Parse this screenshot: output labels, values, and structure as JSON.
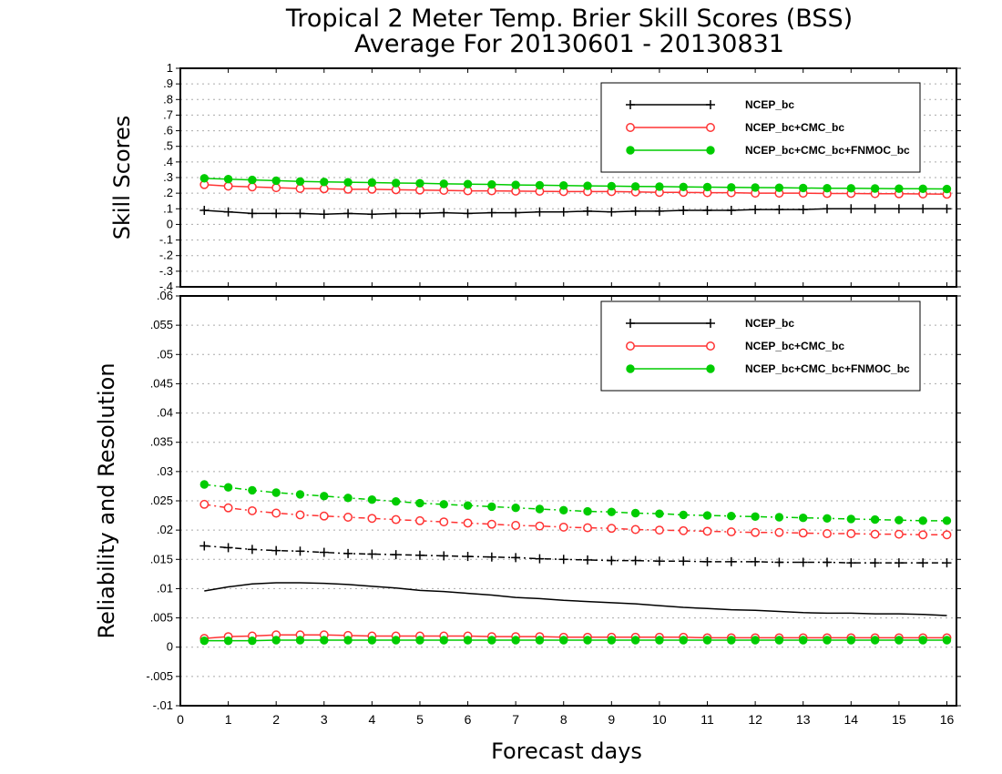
{
  "chart_title_line1": "Tropical 2 Meter Temp. Brier Skill Scores (BSS)",
  "chart_title_line2": "Average For 20130601 - 20130831",
  "chart_data": [
    {
      "type": "line",
      "panel": "top",
      "ylabel": "Skill Scores",
      "xlabel": "",
      "xlim": [
        0,
        16.2
      ],
      "ylim": [
        -0.4,
        1
      ],
      "yticks": [
        1,
        0.9,
        0.8,
        0.7,
        0.6,
        0.5,
        0.4,
        0.3,
        0.2,
        0.1,
        0,
        -0.1,
        -0.2,
        -0.3,
        -0.4
      ],
      "grid": true,
      "legend_position": "top-right",
      "x": [
        0.5,
        1,
        1.5,
        2,
        2.5,
        3,
        3.5,
        4,
        4.5,
        5,
        5.5,
        6,
        6.5,
        7,
        7.5,
        8,
        8.5,
        9,
        9.5,
        10,
        10.5,
        11,
        11.5,
        12,
        12.5,
        13,
        13.5,
        14,
        14.5,
        15,
        15.5,
        16
      ],
      "series": [
        {
          "name": "NCEP_bc",
          "color": "#000000",
          "marker": "plus",
          "line": "solid",
          "values": [
            0.09,
            0.08,
            0.07,
            0.07,
            0.07,
            0.065,
            0.07,
            0.065,
            0.07,
            0.07,
            0.075,
            0.07,
            0.075,
            0.075,
            0.08,
            0.08,
            0.085,
            0.08,
            0.085,
            0.085,
            0.09,
            0.09,
            0.09,
            0.095,
            0.095,
            0.095,
            0.1,
            0.1,
            0.1,
            0.1,
            0.1,
            0.1
          ]
        },
        {
          "name": "NCEP_bc+CMC_bc",
          "color": "#ff3333",
          "marker": "open-circle",
          "line": "solid",
          "values": [
            0.255,
            0.245,
            0.24,
            0.235,
            0.23,
            0.228,
            0.225,
            0.225,
            0.222,
            0.22,
            0.218,
            0.215,
            0.215,
            0.213,
            0.212,
            0.21,
            0.21,
            0.21,
            0.208,
            0.205,
            0.205,
            0.203,
            0.203,
            0.2,
            0.2,
            0.2,
            0.198,
            0.198,
            0.197,
            0.196,
            0.195,
            0.193
          ]
        },
        {
          "name": "NCEP_bc+CMC_bc+FNMOC_bc",
          "color": "#00cc00",
          "marker": "filled-circle",
          "line": "solid",
          "values": [
            0.295,
            0.29,
            0.285,
            0.28,
            0.275,
            0.272,
            0.27,
            0.268,
            0.265,
            0.263,
            0.26,
            0.258,
            0.256,
            0.253,
            0.251,
            0.249,
            0.247,
            0.245,
            0.243,
            0.242,
            0.24,
            0.239,
            0.237,
            0.236,
            0.235,
            0.233,
            0.232,
            0.231,
            0.23,
            0.229,
            0.228,
            0.227
          ]
        }
      ]
    },
    {
      "type": "line",
      "panel": "bottom",
      "ylabel": "Reliability and Resolution",
      "xlabel": "Forecast days",
      "xlim": [
        0,
        16.2
      ],
      "ylim": [
        -0.01,
        0.06
      ],
      "yticks": [
        0.06,
        0.055,
        0.05,
        0.045,
        0.04,
        0.035,
        0.03,
        0.025,
        0.02,
        0.015,
        0.01,
        0.005,
        0,
        -0.005,
        -0.01
      ],
      "xticks": [
        0,
        1,
        2,
        3,
        4,
        5,
        6,
        7,
        8,
        9,
        10,
        11,
        12,
        13,
        14,
        15,
        16
      ],
      "grid": true,
      "legend_position": "top-right",
      "x": [
        0.5,
        1,
        1.5,
        2,
        2.5,
        3,
        3.5,
        4,
        4.5,
        5,
        5.5,
        6,
        6.5,
        7,
        7.5,
        8,
        8.5,
        9,
        9.5,
        10,
        10.5,
        11,
        11.5,
        12,
        12.5,
        13,
        13.5,
        14,
        14.5,
        15,
        15.5,
        16
      ],
      "series": [
        {
          "name": "NCEP_bc",
          "kind": "resolution",
          "color": "#000000",
          "marker": "plus",
          "line": "dashdot",
          "values": [
            0.0173,
            0.017,
            0.0167,
            0.0165,
            0.0164,
            0.0162,
            0.016,
            0.0159,
            0.0158,
            0.0157,
            0.0156,
            0.0155,
            0.0154,
            0.0153,
            0.0151,
            0.015,
            0.0149,
            0.0148,
            0.0148,
            0.0147,
            0.0147,
            0.0146,
            0.0146,
            0.0146,
            0.0145,
            0.0145,
            0.0145,
            0.0144,
            0.0144,
            0.0144,
            0.0144,
            0.0144
          ]
        },
        {
          "name": "NCEP_bc+CMC_bc",
          "kind": "resolution",
          "color": "#ff3333",
          "marker": "open-circle",
          "line": "dashdot",
          "values": [
            0.0244,
            0.0238,
            0.0233,
            0.0229,
            0.0226,
            0.0224,
            0.0222,
            0.022,
            0.0218,
            0.0216,
            0.0214,
            0.0212,
            0.021,
            0.0208,
            0.0207,
            0.0205,
            0.0204,
            0.0203,
            0.0201,
            0.02,
            0.0199,
            0.0198,
            0.0197,
            0.0196,
            0.0196,
            0.0195,
            0.0194,
            0.0194,
            0.0193,
            0.0193,
            0.0192,
            0.0192
          ]
        },
        {
          "name": "NCEP_bc+CMC_bc+FNMOC_bc",
          "kind": "resolution",
          "color": "#00cc00",
          "marker": "filled-circle",
          "line": "dashdot",
          "values": [
            0.0278,
            0.0273,
            0.0268,
            0.0264,
            0.0261,
            0.0258,
            0.0255,
            0.0252,
            0.0249,
            0.0246,
            0.0244,
            0.0242,
            0.024,
            0.0238,
            0.0236,
            0.0234,
            0.0232,
            0.0231,
            0.0229,
            0.0228,
            0.0226,
            0.0225,
            0.0224,
            0.0223,
            0.0222,
            0.0221,
            0.022,
            0.0219,
            0.0218,
            0.0217,
            0.0216,
            0.0216
          ]
        },
        {
          "name": "NCEP_bc",
          "kind": "reliability",
          "color": "#000000",
          "marker": "none",
          "line": "solid",
          "values": [
            0.0096,
            0.0103,
            0.0108,
            0.011,
            0.011,
            0.0109,
            0.0107,
            0.0104,
            0.0101,
            0.0097,
            0.0095,
            0.0092,
            0.0089,
            0.0085,
            0.0083,
            0.008,
            0.0078,
            0.0076,
            0.0074,
            0.0071,
            0.0068,
            0.0066,
            0.0064,
            0.0063,
            0.0061,
            0.0059,
            0.0058,
            0.0058,
            0.0057,
            0.0057,
            0.0056,
            0.0054
          ]
        },
        {
          "name": "NCEP_bc+CMC_bc",
          "kind": "reliability",
          "color": "#ff3333",
          "marker": "open-circle",
          "line": "solid",
          "values": [
            0.0015,
            0.0018,
            0.0019,
            0.0021,
            0.0021,
            0.0021,
            0.002,
            0.0019,
            0.0019,
            0.0019,
            0.0019,
            0.0019,
            0.0018,
            0.0018,
            0.0018,
            0.0017,
            0.0017,
            0.0017,
            0.0017,
            0.0017,
            0.0017,
            0.0016,
            0.0016,
            0.0016,
            0.0016,
            0.0016,
            0.0016,
            0.0016,
            0.0016,
            0.0016,
            0.0016,
            0.0016
          ]
        },
        {
          "name": "NCEP_bc+CMC_bc+FNMOC_bc",
          "kind": "reliability",
          "color": "#00cc00",
          "marker": "filled-circle",
          "line": "solid",
          "values": [
            0.0011,
            0.0011,
            0.0011,
            0.0012,
            0.0012,
            0.0012,
            0.0012,
            0.0012,
            0.0012,
            0.0012,
            0.0012,
            0.0012,
            0.0012,
            0.0012,
            0.0012,
            0.0012,
            0.0012,
            0.0012,
            0.0012,
            0.0012,
            0.0012,
            0.0012,
            0.0012,
            0.0012,
            0.0012,
            0.0012,
            0.0012,
            0.0012,
            0.0012,
            0.0012,
            0.0012,
            0.0012
          ]
        }
      ]
    }
  ],
  "legend_entries": [
    "NCEP_bc",
    "NCEP_bc+CMC_bc",
    "NCEP_bc+CMC_bc+FNMOC_bc"
  ]
}
